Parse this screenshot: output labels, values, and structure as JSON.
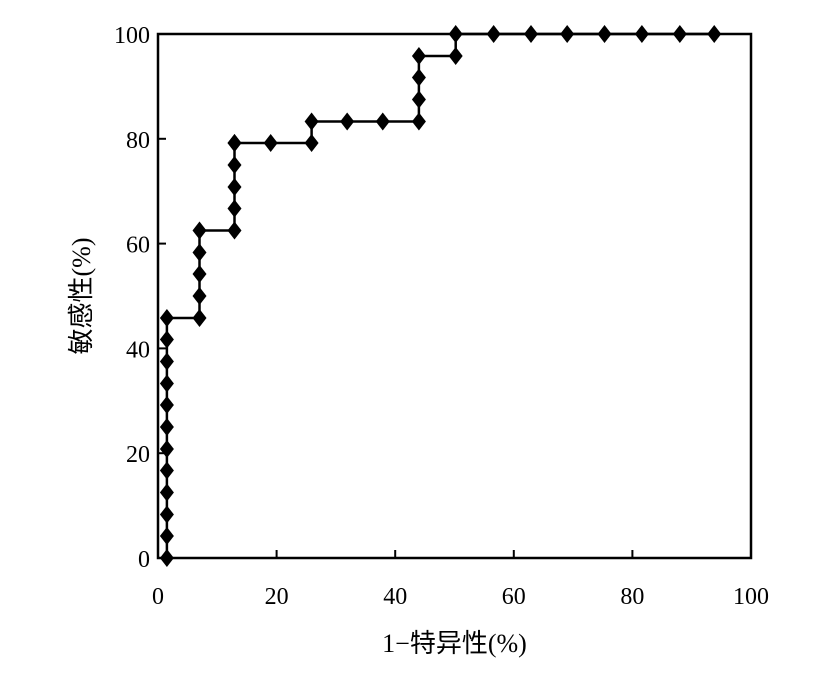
{
  "chart_data": {
    "type": "line",
    "title": "",
    "xlabel": "1−特异性(%)",
    "ylabel": "敏感性(%)",
    "xlim": [
      0,
      100
    ],
    "ylim": [
      0,
      100
    ],
    "x_ticks": [
      0,
      20,
      40,
      60,
      80,
      100
    ],
    "y_ticks": [
      0,
      20,
      40,
      60,
      80,
      100
    ],
    "x_tick_labels": [
      "0",
      "20",
      "40",
      "60",
      "80",
      "100"
    ],
    "y_tick_labels": [
      "0",
      "20",
      "40",
      "60",
      "80",
      "100"
    ],
    "grid": false,
    "legend": "none",
    "marker": "diamond",
    "line_color": "#000000",
    "series": [
      {
        "x": [
          1.5,
          1.5,
          1.5,
          1.5,
          1.5,
          1.5,
          1.5,
          1.5,
          1.5,
          1.5,
          1.5,
          1.5,
          7.0,
          7.0,
          7.0,
          7.0,
          7.0,
          12.9,
          12.9,
          12.9,
          12.9,
          12.9,
          12.9,
          19.0,
          25.9,
          25.9,
          31.9,
          37.9,
          44.0,
          44.0,
          44.0,
          44.0,
          50.2,
          50.2,
          56.6,
          62.9,
          69.0,
          75.3,
          81.6,
          88.0,
          93.8
        ],
        "y": [
          0,
          4.2,
          8.3,
          12.5,
          16.7,
          20.8,
          25.0,
          29.2,
          33.3,
          37.5,
          41.7,
          45.8,
          45.8,
          50.0,
          54.2,
          58.3,
          62.5,
          62.5,
          66.7,
          70.8,
          75.0,
          79.2,
          79.2,
          79.2,
          79.2,
          83.3,
          83.3,
          83.3,
          83.3,
          87.5,
          91.7,
          95.8,
          95.8,
          100,
          100,
          100,
          100,
          100,
          100,
          100,
          100
        ]
      }
    ]
  }
}
